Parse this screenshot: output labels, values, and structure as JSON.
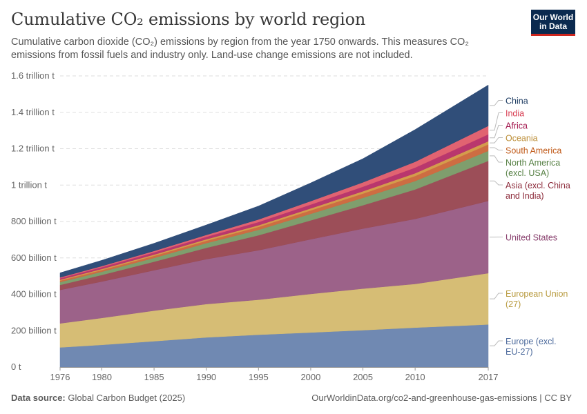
{
  "title": "Cumulative CO₂ emissions by world region",
  "subtitle": "Cumulative carbon dioxide (CO₂) emissions by region from the year 1750 onwards. This measures CO₂ emissions from fossil fuels and industry only. Land-use change emissions are not included.",
  "logo": {
    "line1": "Our World",
    "line2": "in Data"
  },
  "footer": {
    "source_label": "Data source:",
    "source": "Global Carbon Budget (2025)",
    "url": "OurWorldinData.org/co2-and-greenhouse-gas-emissions | CC BY"
  },
  "chart_data": {
    "type": "area",
    "stacked": true,
    "x": [
      1976,
      1980,
      1985,
      1990,
      1995,
      2000,
      2005,
      2010,
      2017
    ],
    "xticks": [
      "1976",
      "1980",
      "1985",
      "1990",
      "1995",
      "2000",
      "2005",
      "2010",
      "2017"
    ],
    "ylim": [
      0,
      1600
    ],
    "yticks": [
      {
        "v": 0,
        "label": "0 t"
      },
      {
        "v": 200,
        "label": "200 billion t"
      },
      {
        "v": 400,
        "label": "400 billion t"
      },
      {
        "v": 600,
        "label": "600 billion t"
      },
      {
        "v": 800,
        "label": "800 billion t"
      },
      {
        "v": 1000,
        "label": "1 trillion t"
      },
      {
        "v": 1200,
        "label": "1.2 trillion t"
      },
      {
        "v": 1400,
        "label": "1.4 trillion t"
      },
      {
        "v": 1600,
        "label": "1.6 trillion t"
      }
    ],
    "grid": true,
    "legend": "right",
    "series": [
      {
        "name": "Europe (excl. EU-27)",
        "color": "#6d87b0",
        "label_color": "#4c6a9c",
        "values": [
          108,
          122,
          142,
          163,
          178,
          190,
          203,
          217,
          234
        ]
      },
      {
        "name": "European Union (27)",
        "color": "#d5bc72",
        "label_color": "#b89a3e",
        "values": [
          132,
          148,
          168,
          183,
          192,
          212,
          228,
          240,
          282
        ]
      },
      {
        "name": "United States",
        "color": "#9a5f87",
        "label_color": "#883f6d",
        "values": [
          184,
          200,
          222,
          247,
          272,
          300,
          330,
          357,
          397
        ]
      },
      {
        "name": "Asia (excl. China and India)",
        "color": "#9a4a55",
        "label_color": "#8c2a3a",
        "values": [
          27,
          36,
          47,
          62,
          82,
          104,
          128,
          162,
          220
        ]
      },
      {
        "name": "North America (excl. USA)",
        "color": "#7c9c6a",
        "label_color": "#578145",
        "values": [
          16,
          18,
          21,
          26,
          30,
          36,
          41,
          46,
          55
        ]
      },
      {
        "name": "South America",
        "color": "#cc6a3e",
        "label_color": "#c05917",
        "values": [
          8,
          9,
          11,
          13,
          16,
          19,
          23,
          28,
          35
        ]
      },
      {
        "name": "Oceania",
        "color": "#d39a48",
        "label_color": "#bc8e38",
        "values": [
          5,
          6,
          7,
          8,
          9,
          11,
          13,
          15,
          18
        ]
      },
      {
        "name": "Africa",
        "color": "#b8336a",
        "label_color": "#a2154c",
        "values": [
          8,
          10,
          12,
          14,
          18,
          21,
          25,
          31,
          38
        ]
      },
      {
        "name": "India",
        "color": "#e0606e",
        "label_color": "#d73c50",
        "values": [
          5,
          6,
          8,
          10,
          14,
          19,
          24,
          32,
          46
        ]
      },
      {
        "name": "China",
        "color": "#2c4a76",
        "label_color": "#18375e",
        "values": [
          25,
          32,
          42,
          55,
          74,
          100,
          130,
          177,
          225
        ]
      }
    ]
  }
}
